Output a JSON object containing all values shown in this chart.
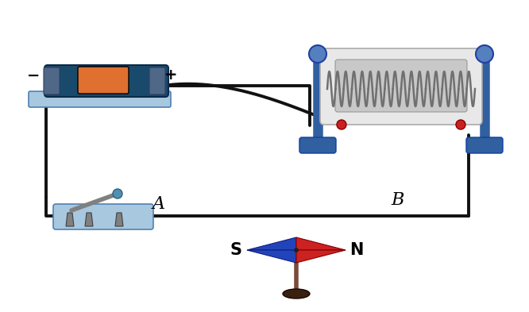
{
  "bg_color": "#ffffff",
  "wire_color": "#111111",
  "battery_color_dark": "#1a4a6b",
  "battery_color_orange": "#e07030",
  "battery_base_color": "#a8c8e0",
  "solenoid_stand_color": "#4070b0",
  "solenoid_wire_color": "#909090",
  "switch_base_color": "#a8c8e0",
  "switch_metal_color": "#808080",
  "compass_blue": "#2244bb",
  "compass_red": "#cc2222",
  "compass_stand_color": "#7a4a3a",
  "label_A": "A",
  "label_B": "B",
  "label_minus": "−",
  "label_plus": "+",
  "label_S": "S",
  "label_N": "N"
}
